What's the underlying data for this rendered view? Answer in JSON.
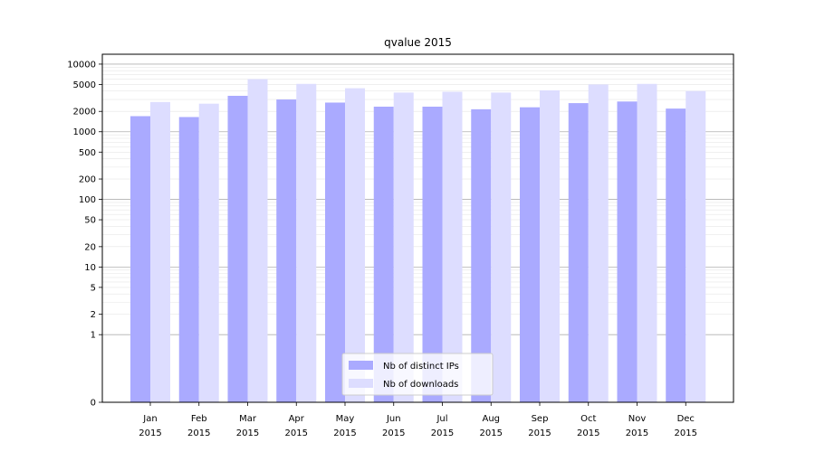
{
  "chart_data": {
    "type": "bar",
    "title": "qvalue 2015",
    "xlabel": "",
    "ylabel": "",
    "yscale": "symlog",
    "ylim": [
      0,
      14000
    ],
    "yticks": [
      0,
      1,
      2,
      5,
      10,
      20,
      50,
      100,
      200,
      500,
      1000,
      2000,
      5000,
      10000
    ],
    "categories": [
      {
        "month": "Jan",
        "year": "2015"
      },
      {
        "month": "Feb",
        "year": "2015"
      },
      {
        "month": "Mar",
        "year": "2015"
      },
      {
        "month": "Apr",
        "year": "2015"
      },
      {
        "month": "May",
        "year": "2015"
      },
      {
        "month": "Jun",
        "year": "2015"
      },
      {
        "month": "Jul",
        "year": "2015"
      },
      {
        "month": "Aug",
        "year": "2015"
      },
      {
        "month": "Sep",
        "year": "2015"
      },
      {
        "month": "Oct",
        "year": "2015"
      },
      {
        "month": "Nov",
        "year": "2015"
      },
      {
        "month": "Dec",
        "year": "2015"
      }
    ],
    "series": [
      {
        "name": "Nb of distinct IPs",
        "color": "#aaaaff",
        "values": [
          1700,
          1650,
          3400,
          3000,
          2700,
          2350,
          2350,
          2150,
          2300,
          2650,
          2800,
          2200
        ]
      },
      {
        "name": "Nb of downloads",
        "color": "#ddddff",
        "values": [
          2750,
          2600,
          6000,
          5100,
          4400,
          3800,
          3900,
          3800,
          4100,
          5000,
          5100,
          4000
        ]
      }
    ],
    "grid": true,
    "legend_position": "bottom-center"
  }
}
